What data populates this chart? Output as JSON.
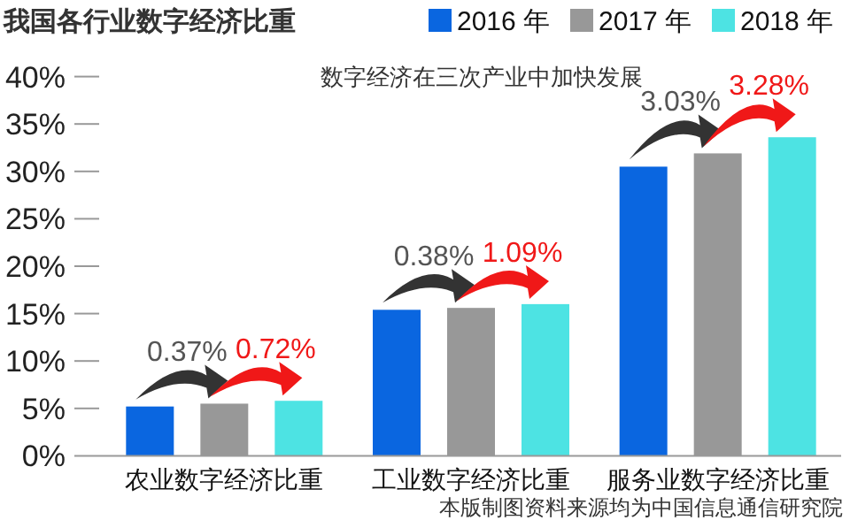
{
  "chart_data": {
    "type": "bar",
    "title": "我国各行业数字经济比重",
    "subtitle": "数字经济在三次产业中加快发展",
    "categories": [
      "农业数字经济比重",
      "工业数字经济比重",
      "服务业数字经济比重"
    ],
    "series": [
      {
        "name": "2016 年",
        "color": "#0a66e0",
        "values": [
          5.2,
          15.4,
          30.5
        ]
      },
      {
        "name": "2017 年",
        "color": "#989898",
        "values": [
          5.5,
          15.6,
          31.9
        ]
      },
      {
        "name": "2018 年",
        "color": "#4de3e3",
        "values": [
          5.8,
          16.0,
          33.6
        ]
      }
    ],
    "ylim": [
      0,
      40
    ],
    "yticks": [
      {
        "value": 0,
        "label": "0%"
      },
      {
        "value": 5,
        "label": "5%"
      },
      {
        "value": 10,
        "label": "10%"
      },
      {
        "value": 15,
        "label": "15%"
      },
      {
        "value": 20,
        "label": "20%"
      },
      {
        "value": 25,
        "label": "25%"
      },
      {
        "value": 30,
        "label": "30%"
      },
      {
        "value": 35,
        "label": "35%"
      },
      {
        "value": 40,
        "label": "40%"
      }
    ],
    "legend": "top right",
    "annotations": [
      "0.37%",
      "0.72%",
      "0.38%",
      "1.09%",
      "3.03%",
      "3.28%",
      "本版制图资料来源均为中国信息通信研究院"
    ]
  }
}
